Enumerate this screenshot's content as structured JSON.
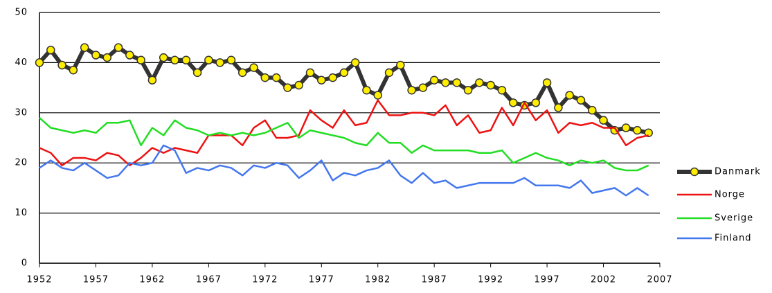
{
  "chart_data": {
    "type": "line",
    "x": [
      1952,
      1953,
      1954,
      1955,
      1956,
      1957,
      1958,
      1959,
      1960,
      1961,
      1962,
      1963,
      1964,
      1965,
      1966,
      1967,
      1968,
      1969,
      1970,
      1971,
      1972,
      1973,
      1974,
      1975,
      1976,
      1977,
      1978,
      1979,
      1980,
      1981,
      1982,
      1983,
      1984,
      1985,
      1986,
      1987,
      1988,
      1989,
      1990,
      1991,
      1992,
      1993,
      1994,
      1995,
      1996,
      1997,
      1998,
      1999,
      2000,
      2001,
      2002,
      2003,
      2004,
      2005,
      2006
    ],
    "xlim": [
      1952,
      2007
    ],
    "xticks": [
      1952,
      1957,
      1962,
      1967,
      1972,
      1977,
      1982,
      1987,
      1992,
      1997,
      2002,
      2007
    ],
    "ylim": [
      0,
      50
    ],
    "yticks": [
      0,
      10,
      20,
      30,
      40,
      50
    ],
    "grid": true,
    "legend": "right",
    "series": [
      {
        "name": "Danmark",
        "color": "#333333",
        "marker": "#ffee00",
        "values": [
          40,
          42.5,
          39.5,
          38.5,
          43,
          41.5,
          41,
          43,
          41.5,
          40.5,
          36.5,
          41,
          40.5,
          40.5,
          38,
          40.5,
          40,
          40.5,
          38,
          39,
          37,
          37,
          35,
          35.5,
          38,
          36.5,
          37,
          38,
          40,
          34.5,
          33.5,
          38,
          39.5,
          34.5,
          35,
          36.5,
          36,
          36,
          34.5,
          36,
          35.5,
          34.5,
          32,
          31.5,
          32,
          36,
          31,
          33.5,
          32.5,
          30.5,
          28.5,
          26.5,
          27,
          26.5,
          26
        ]
      },
      {
        "name": "Norge",
        "color": "#ee1111",
        "values": [
          23,
          22,
          19.5,
          21,
          21,
          20.5,
          22,
          21.5,
          19.5,
          21,
          23,
          22,
          23,
          22.5,
          22,
          25.5,
          25.5,
          25.5,
          23.5,
          27,
          28.5,
          25,
          25,
          25.5,
          30.5,
          28.5,
          27,
          30.5,
          27.5,
          28,
          32.5,
          29.5,
          29.5,
          30,
          30,
          29.5,
          31.5,
          27.5,
          29.5,
          26,
          26.5,
          31,
          27.5,
          32,
          28.5,
          30.5,
          26,
          28,
          27.5,
          28,
          27,
          27,
          23.5,
          25,
          25.5
        ]
      },
      {
        "name": "Sverige",
        "color": "#22dd22",
        "values": [
          29,
          27,
          26.5,
          26,
          26.5,
          26,
          28,
          28,
          28.5,
          23.5,
          27,
          25.5,
          28.5,
          27,
          26.5,
          25.5,
          26,
          25.5,
          26,
          25.5,
          26,
          27,
          28,
          25,
          26.5,
          26,
          25.5,
          25,
          24,
          23.5,
          26,
          24,
          24,
          22,
          23.5,
          22.5,
          22.5,
          22.5,
          22.5,
          22,
          22,
          22.5,
          20,
          21,
          22,
          21,
          20.5,
          19.5,
          20.5,
          20,
          20.5,
          19,
          18.5,
          18.5,
          19.5
        ]
      },
      {
        "name": "Finland",
        "color": "#4477ee",
        "values": [
          19,
          20.5,
          19,
          18.5,
          20,
          18.5,
          17,
          17.5,
          20,
          19.5,
          20,
          23.5,
          22.5,
          18,
          19,
          18.5,
          19.5,
          19,
          17.5,
          19.5,
          19,
          20,
          19.5,
          17,
          18.5,
          20.5,
          16.5,
          18,
          17.5,
          18.5,
          19,
          20.5,
          17.5,
          16,
          18,
          16,
          16.5,
          15,
          15.5,
          16,
          16,
          16,
          16,
          17,
          15.5,
          15.5,
          15.5,
          15,
          16.5,
          14,
          14.5,
          15,
          13.5,
          15,
          13.5
        ]
      }
    ]
  }
}
